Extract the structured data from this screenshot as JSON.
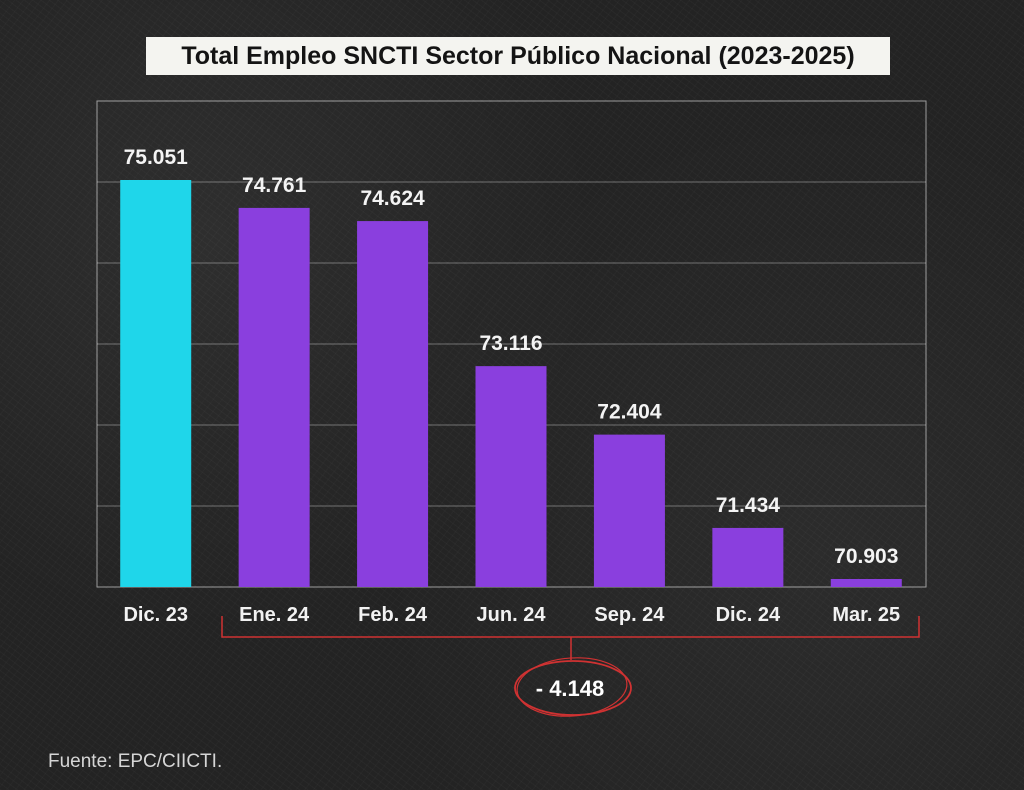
{
  "chart_data": {
    "type": "bar",
    "title": "Total Empleo SNCTI Sector Público Nacional (2023-2025)",
    "categories": [
      "Dic. 23",
      "Ene. 24",
      "Feb. 24",
      "Jun. 24",
      "Sep. 24",
      "Dic. 24",
      "Mar. 25"
    ],
    "values": [
      75051,
      74761,
      74624,
      73116,
      72404,
      71434,
      70903
    ],
    "value_labels": [
      "75.051",
      "74.761",
      "74.624",
      "73.116",
      "72.404",
      "71.434",
      "70.903"
    ],
    "colors": [
      "#1fd6ea",
      "#8a3fde",
      "#8a3fde",
      "#8a3fde",
      "#8a3fde",
      "#8a3fde",
      "#8a3fde"
    ],
    "grid": true,
    "annotation": {
      "text": "- 4.148",
      "color": "#d03232"
    },
    "source": "Fuente: EPC/CIICTI."
  }
}
